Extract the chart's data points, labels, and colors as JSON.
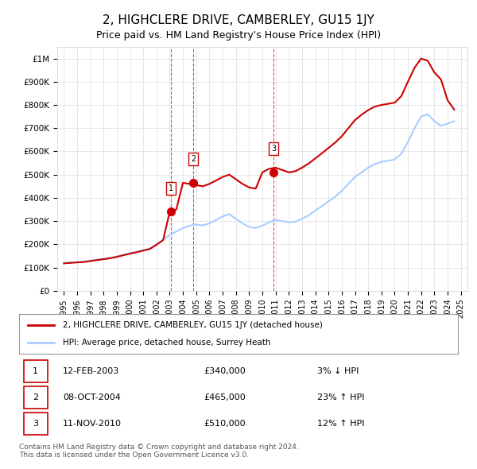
{
  "title": "2, HIGHCLERE DRIVE, CAMBERLEY, GU15 1JY",
  "subtitle": "Price paid vs. HM Land Registry's House Price Index (HPI)",
  "title_fontsize": 11,
  "subtitle_fontsize": 9,
  "background_color": "#ffffff",
  "plot_bg_color": "#ffffff",
  "grid_color": "#dddddd",
  "hpi_years": [
    1995,
    1995.5,
    1996,
    1996.5,
    1997,
    1997.5,
    1998,
    1998.5,
    1999,
    1999.5,
    2000,
    2000.5,
    2001,
    2001.5,
    2002,
    2002.5,
    2003,
    2003.5,
    2004,
    2004.5,
    2005,
    2005.5,
    2006,
    2006.5,
    2007,
    2007.5,
    2008,
    2008.5,
    2009,
    2009.5,
    2010,
    2010.5,
    2011,
    2011.5,
    2012,
    2012.5,
    2013,
    2013.5,
    2014,
    2014.5,
    2015,
    2015.5,
    2016,
    2016.5,
    2017,
    2017.5,
    2018,
    2018.5,
    2019,
    2019.5,
    2020,
    2020.5,
    2021,
    2021.5,
    2022,
    2022.5,
    2023,
    2023.5,
    2024,
    2024.5
  ],
  "hpi_values": [
    120000,
    122000,
    124000,
    126000,
    130000,
    134000,
    138000,
    142000,
    148000,
    155000,
    162000,
    168000,
    175000,
    182000,
    200000,
    220000,
    240000,
    255000,
    270000,
    280000,
    285000,
    282000,
    290000,
    305000,
    320000,
    330000,
    310000,
    290000,
    275000,
    270000,
    280000,
    295000,
    305000,
    300000,
    295000,
    298000,
    310000,
    325000,
    345000,
    365000,
    385000,
    405000,
    430000,
    460000,
    490000,
    510000,
    530000,
    545000,
    555000,
    560000,
    565000,
    590000,
    640000,
    700000,
    750000,
    760000,
    730000,
    710000,
    720000,
    730000
  ],
  "red_years": [
    1995,
    1995.5,
    1996,
    1996.5,
    1997,
    1997.5,
    1998,
    1998.5,
    1999,
    1999.5,
    2000,
    2000.5,
    2001,
    2001.5,
    2002,
    2002.5,
    2003,
    2003.5,
    2004,
    2004.5,
    2005,
    2005.5,
    2006,
    2006.5,
    2007,
    2007.5,
    2008,
    2008.5,
    2009,
    2009.5,
    2010,
    2010.5,
    2011,
    2011.5,
    2012,
    2012.5,
    2013,
    2013.5,
    2014,
    2014.5,
    2015,
    2015.5,
    2016,
    2016.5,
    2017,
    2017.5,
    2018,
    2018.5,
    2019,
    2019.5,
    2020,
    2020.5,
    2021,
    2021.5,
    2022,
    2022.5,
    2023,
    2023.5,
    2024,
    2024.5
  ],
  "red_values": [
    118000,
    120000,
    122000,
    124000,
    128000,
    132000,
    136000,
    140000,
    146000,
    153000,
    160000,
    166000,
    173000,
    180000,
    198000,
    218000,
    340000,
    350000,
    465000,
    460000,
    455000,
    450000,
    460000,
    475000,
    490000,
    500000,
    480000,
    460000,
    445000,
    440000,
    510000,
    525000,
    530000,
    520000,
    510000,
    515000,
    530000,
    548000,
    570000,
    592000,
    615000,
    638000,
    665000,
    700000,
    735000,
    758000,
    778000,
    793000,
    800000,
    805000,
    810000,
    838000,
    900000,
    960000,
    1000000,
    990000,
    940000,
    910000,
    820000,
    780000
  ],
  "sale_points": [
    {
      "year": 2003.08,
      "price": 340000,
      "label": "1"
    },
    {
      "year": 2004.77,
      "price": 465000,
      "label": "2"
    },
    {
      "year": 2010.86,
      "price": 510000,
      "label": "3"
    }
  ],
  "sale_color": "#cc0000",
  "hpi_color": "#aaccff",
  "red_line_color": "#cc0000",
  "dashed_line_color": "#cc0000",
  "table_data": [
    {
      "num": "1",
      "date": "12-FEB-2003",
      "price": "£340,000",
      "pct": "3% ↓ HPI"
    },
    {
      "num": "2",
      "date": "08-OCT-2004",
      "price": "£465,000",
      "pct": "23% ↑ HPI"
    },
    {
      "num": "3",
      "date": "11-NOV-2010",
      "price": "£510,000",
      "pct": "12% ↑ HPI"
    }
  ],
  "legend_line1": "2, HIGHCLERE DRIVE, CAMBERLEY, GU15 1JY (detached house)",
  "legend_line2": "HPI: Average price, detached house, Surrey Heath",
  "footer": "Contains HM Land Registry data © Crown copyright and database right 2024.\nThis data is licensed under the Open Government Licence v3.0.",
  "xlim": [
    1994.5,
    2025.5
  ],
  "ylim": [
    0,
    1050000
  ],
  "yticks": [
    0,
    100000,
    200000,
    300000,
    400000,
    500000,
    600000,
    700000,
    800000,
    900000,
    1000000
  ],
  "ytick_labels": [
    "£0",
    "£100K",
    "£200K",
    "£300K",
    "£400K",
    "£500K",
    "£600K",
    "£700K",
    "£800K",
    "£900K",
    "£1M"
  ],
  "xtick_years": [
    1995,
    1996,
    1997,
    1998,
    1999,
    2000,
    2001,
    2002,
    2003,
    2004,
    2005,
    2006,
    2007,
    2008,
    2009,
    2010,
    2011,
    2012,
    2013,
    2014,
    2015,
    2016,
    2017,
    2018,
    2019,
    2020,
    2021,
    2022,
    2023,
    2024,
    2025
  ]
}
